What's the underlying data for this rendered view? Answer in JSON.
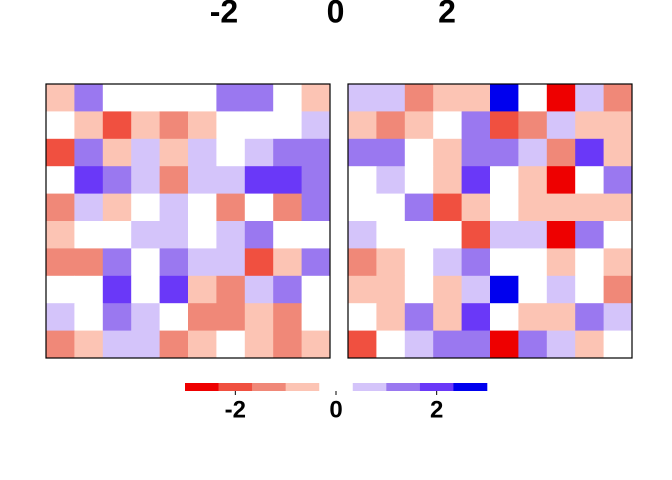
{
  "chart_data": {
    "type": "heatmap",
    "top_axis": {
      "lim": [
        -2,
        2
      ],
      "ticks": [
        -2,
        0,
        2
      ]
    },
    "colorbar": {
      "xlim": [
        -3,
        3
      ],
      "xticks": [
        -2,
        0,
        2
      ],
      "breaks": [
        -3,
        -2.333,
        -1.667,
        -1,
        -0.333,
        0.333,
        1,
        1.667,
        2.333,
        3
      ],
      "colors": [
        "#ee0000",
        "#f05040",
        "#f08878",
        "#fcc4b4",
        "#ffffff",
        "#d4c4fa",
        "#9a78f0",
        "#6a38f8",
        "#0000ee"
      ]
    },
    "panels": [
      {
        "values": [
          [
            -0.67,
            1.33,
            0,
            0,
            0,
            0,
            1.33,
            1.33,
            0,
            -0.67
          ],
          [
            0,
            -0.67,
            -2,
            -0.67,
            -1.33,
            -0.67,
            0,
            0,
            0,
            0.67
          ],
          [
            -2,
            1.33,
            -0.67,
            0.67,
            -0.67,
            0.67,
            0,
            0.67,
            1.33,
            1.33
          ],
          [
            0,
            2,
            1.33,
            0.67,
            -1.33,
            0.67,
            0.67,
            2,
            2,
            1.33
          ],
          [
            -1.33,
            0.67,
            -0.67,
            0,
            0.67,
            0,
            -1.33,
            0,
            -1.33,
            1.33
          ],
          [
            -0.67,
            0,
            0,
            0.67,
            0.67,
            0,
            0.67,
            1.33,
            0,
            0
          ],
          [
            -1.33,
            -1.33,
            1.33,
            0,
            1.33,
            0.67,
            0.67,
            -2,
            -0.67,
            1.33
          ],
          [
            0,
            0,
            2,
            0,
            2,
            -0.67,
            -1.33,
            0.67,
            1.33,
            0
          ],
          [
            0.67,
            0,
            1.33,
            0.67,
            0,
            -1.33,
            -1.33,
            -0.67,
            -1.33,
            0
          ],
          [
            -1.33,
            -0.67,
            0.67,
            0.67,
            -1.33,
            -0.67,
            0,
            -0.67,
            -1.33,
            -0.67
          ]
        ]
      },
      {
        "values": [
          [
            0.67,
            0.67,
            -1.33,
            -0.67,
            -0.67,
            2.67,
            0,
            -2.67,
            0.67,
            -1.33
          ],
          [
            -0.67,
            -1.33,
            -0.67,
            0,
            1.33,
            -2,
            -1.33,
            0.67,
            -0.67,
            -0.67
          ],
          [
            1.33,
            1.33,
            0,
            -0.67,
            1.33,
            1.33,
            0.67,
            -1.33,
            2,
            -0.67
          ],
          [
            0,
            0.67,
            0,
            -0.67,
            2,
            0,
            -0.67,
            -2.67,
            0,
            1.33
          ],
          [
            0,
            0,
            1.33,
            -2,
            -0.67,
            0,
            -0.67,
            -0.67,
            -0.67,
            -0.67
          ],
          [
            0.67,
            0,
            0,
            0,
            -2,
            0.67,
            0.67,
            -2.67,
            1.33,
            0
          ],
          [
            -1.33,
            -0.67,
            0,
            0.67,
            1.33,
            0,
            0,
            -0.67,
            0,
            -0.67
          ],
          [
            -0.67,
            -0.67,
            0,
            -0.67,
            0.67,
            2.67,
            0,
            0.67,
            0,
            -1.33
          ],
          [
            0,
            -0.67,
            1.33,
            -0.67,
            2,
            0,
            -0.67,
            -0.67,
            1.33,
            0.67
          ],
          [
            -2,
            0,
            0.67,
            1.33,
            1.33,
            -2.67,
            1.33,
            0.67,
            -0.67,
            0
          ]
        ]
      }
    ]
  }
}
